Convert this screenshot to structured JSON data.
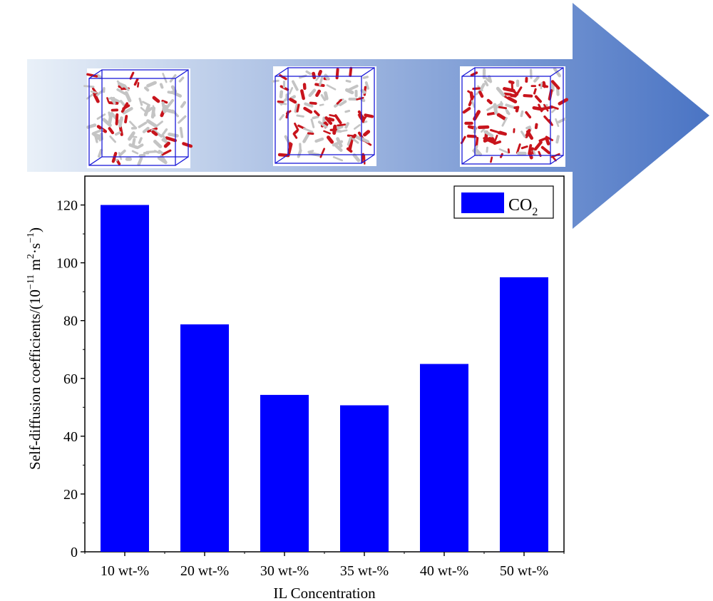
{
  "colors": {
    "bar": "#0000ff",
    "arrow_light": "#e9f0f8",
    "arrow_dark": "#4a74c4",
    "molecule_red": "#c8141c",
    "molecule_gray": "#c4c4c4",
    "box_edge": "#1a1ad8"
  },
  "illustration": {
    "icon": "arrow-right-icon",
    "snapshots": [
      "simulation-box-icon",
      "simulation-box-icon",
      "simulation-box-icon"
    ]
  },
  "chart_data": {
    "type": "bar",
    "categories": [
      "10 wt-%",
      "20 wt-%",
      "30 wt-%",
      "35 wt-%",
      "40 wt-%",
      "50 wt-%"
    ],
    "series": [
      {
        "name": "CO2",
        "values": [
          120,
          78.7,
          54.3,
          50.7,
          65,
          95
        ]
      }
    ],
    "legend": {
      "main": "CO",
      "sub": "2",
      "position": "top-right"
    },
    "xlabel": "IL Concentration",
    "ylabel": {
      "main": "Self-diffusion coefficients/(10",
      "exp1": "−11",
      "mid": " m",
      "exp2": "2",
      "dot": "·s",
      "exp3": "−1",
      "end": ")"
    },
    "yticks": [
      "0",
      "20",
      "40",
      "60",
      "80",
      "100",
      "120"
    ],
    "ylim": [
      0,
      130
    ],
    "grid": false
  }
}
